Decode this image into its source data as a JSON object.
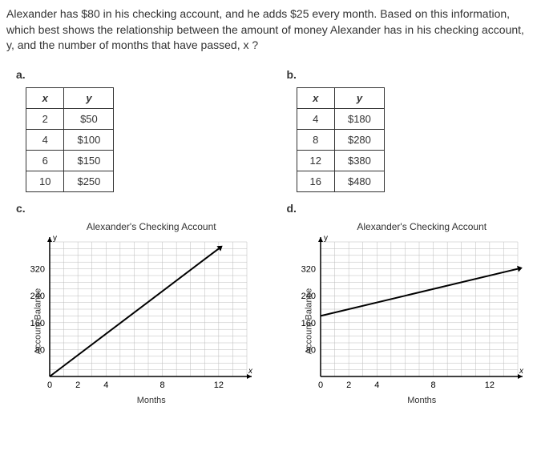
{
  "question_text": "Alexander has $80 in his checking account, and he adds $25 every month. Based on this information, which best shows the relationship between the amount of money Alexander has in his checking account, y, and the number of months that have passed, x ?",
  "labels": {
    "a": "a.",
    "b": "b.",
    "c": "c.",
    "d": "d."
  },
  "table_headers": {
    "x": "x",
    "y": "y"
  },
  "option_a": {
    "rows": [
      {
        "x": "2",
        "y": "$50"
      },
      {
        "x": "4",
        "y": "$100"
      },
      {
        "x": "6",
        "y": "$150"
      },
      {
        "x": "10",
        "y": "$250"
      }
    ]
  },
  "option_b": {
    "rows": [
      {
        "x": "4",
        "y": "$180"
      },
      {
        "x": "8",
        "y": "$280"
      },
      {
        "x": "12",
        "y": "$380"
      },
      {
        "x": "16",
        "y": "$480"
      }
    ]
  },
  "chart_common": {
    "title": "Alexander's Checking Account",
    "x_label": "Months",
    "y_label": "Account Balance",
    "y_arrow": "y",
    "x_arrow": "x",
    "x_max": 14,
    "y_max": 400,
    "grid_color": "#bbbbbb",
    "axis_color": "#000000",
    "line_color": "#000000",
    "x_ticks": [
      0,
      2,
      4,
      8,
      12
    ],
    "y_ticks": [
      80,
      160,
      240,
      320
    ],
    "grid_minor_x": 1,
    "grid_minor_y": 20,
    "line_width": 2
  },
  "option_c": {
    "line": {
      "x1": 0,
      "y1": 0,
      "x2": 12,
      "y2": 380
    }
  },
  "option_d": {
    "line": {
      "x1": 0,
      "y1": 180,
      "x2": 14,
      "y2": 320
    }
  }
}
